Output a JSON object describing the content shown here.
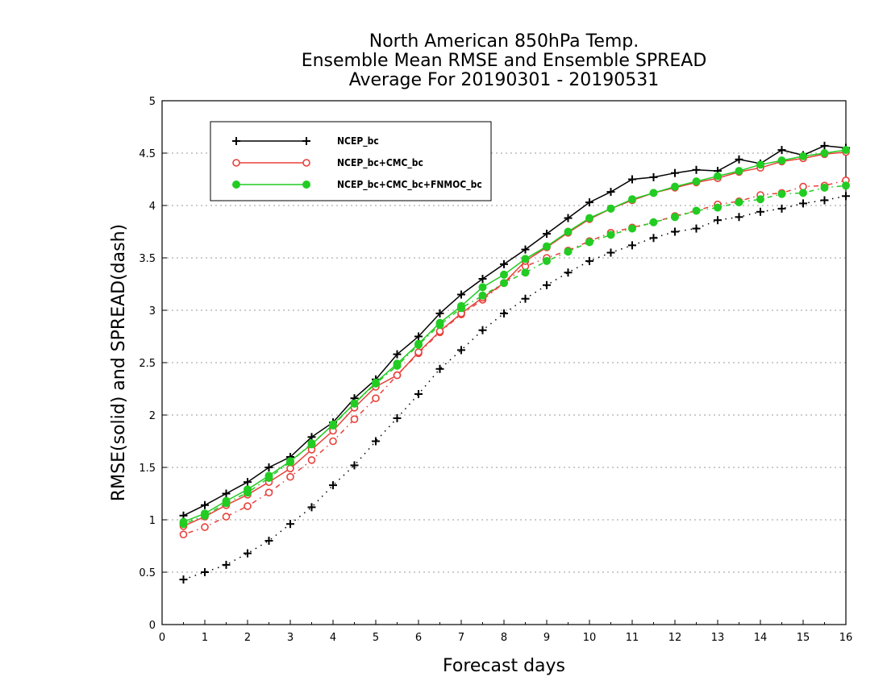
{
  "chart_data": {
    "type": "line",
    "title": [
      "North American 850hPa Temp.",
      "Ensemble Mean RMSE and Ensemble SPREAD",
      "Average For 20190301 - 20190531"
    ],
    "xlabel": "Forecast days",
    "ylabel": "RMSE(solid) and SPREAD(dash)",
    "xlim": [
      0,
      16
    ],
    "ylim": [
      0,
      5
    ],
    "xticks": [
      0,
      1,
      2,
      3,
      4,
      5,
      6,
      7,
      8,
      9,
      10,
      11,
      12,
      13,
      14,
      15,
      16
    ],
    "xtick_labels": [
      "0",
      "1",
      "2",
      "3",
      "4",
      "5",
      "6",
      "7",
      "8",
      "9",
      "10",
      "11",
      "12",
      "13",
      "14",
      "15",
      "16"
    ],
    "yticks": [
      0,
      0.5,
      1,
      1.5,
      2,
      2.5,
      3,
      3.5,
      4,
      4.5,
      5
    ],
    "ytick_labels": [
      "0",
      "0.5",
      "1",
      "1.5",
      "2",
      "2.5",
      "3",
      "3.5",
      "4",
      "4.5",
      "5"
    ],
    "grid": true,
    "legend_position": "top-left",
    "x": [
      0.5,
      1,
      1.5,
      2,
      2.5,
      3,
      3.5,
      4,
      4.5,
      5,
      5.5,
      6,
      6.5,
      7,
      7.5,
      8,
      8.5,
      9,
      9.5,
      10,
      10.5,
      11,
      11.5,
      12,
      12.5,
      13,
      13.5,
      14,
      14.5,
      15,
      15.5,
      16
    ],
    "series": [
      {
        "name": "NCEP_bc",
        "color": "#000000",
        "marker": "plus",
        "rmse": [
          1.04,
          1.14,
          1.25,
          1.36,
          1.5,
          1.6,
          1.79,
          1.93,
          2.16,
          2.34,
          2.58,
          2.75,
          2.97,
          3.15,
          3.3,
          3.44,
          3.58,
          3.73,
          3.88,
          4.03,
          4.13,
          4.25,
          4.27,
          4.31,
          4.34,
          4.33,
          4.44,
          4.4,
          4.53,
          4.48,
          4.57,
          4.55
        ],
        "spread": [
          0.43,
          0.5,
          0.57,
          0.68,
          0.8,
          0.96,
          1.12,
          1.33,
          1.52,
          1.75,
          1.97,
          2.2,
          2.44,
          2.62,
          2.81,
          2.97,
          3.11,
          3.24,
          3.36,
          3.47,
          3.55,
          3.62,
          3.69,
          3.75,
          3.78,
          3.86,
          3.89,
          3.94,
          3.97,
          4.02,
          4.05,
          4.09
        ]
      },
      {
        "name": "NCEP_bc+CMC_bc",
        "color": "#e8403a",
        "marker": "open-circle",
        "rmse": [
          0.94,
          1.03,
          1.14,
          1.24,
          1.36,
          1.49,
          1.67,
          1.85,
          2.07,
          2.27,
          2.38,
          2.6,
          2.8,
          2.97,
          3.12,
          3.26,
          3.47,
          3.6,
          3.74,
          3.87,
          3.97,
          4.05,
          4.12,
          4.17,
          4.22,
          4.26,
          4.32,
          4.36,
          4.42,
          4.45,
          4.49,
          4.51
        ],
        "spread": [
          0.86,
          0.93,
          1.03,
          1.13,
          1.26,
          1.41,
          1.57,
          1.75,
          1.96,
          2.16,
          2.38,
          2.59,
          2.79,
          2.96,
          3.1,
          3.26,
          3.42,
          3.5,
          3.57,
          3.66,
          3.74,
          3.79,
          3.84,
          3.9,
          3.95,
          4.01,
          4.04,
          4.1,
          4.12,
          4.18,
          4.19,
          4.24
        ]
      },
      {
        "name": "NCEP_bc+CMC_bc+FNMOC_bc",
        "color": "#22cc22",
        "marker": "filled-circle",
        "rmse": [
          0.98,
          1.06,
          1.18,
          1.29,
          1.42,
          1.56,
          1.72,
          1.91,
          2.11,
          2.31,
          2.49,
          2.68,
          2.88,
          3.04,
          3.22,
          3.34,
          3.49,
          3.61,
          3.75,
          3.88,
          3.97,
          4.06,
          4.12,
          4.18,
          4.23,
          4.28,
          4.33,
          4.39,
          4.43,
          4.47,
          4.5,
          4.53
        ],
        "spread": [
          0.96,
          1.04,
          1.16,
          1.26,
          1.4,
          1.55,
          1.73,
          1.9,
          2.11,
          2.3,
          2.47,
          2.67,
          2.86,
          3.02,
          3.14,
          3.26,
          3.36,
          3.47,
          3.56,
          3.65,
          3.72,
          3.78,
          3.84,
          3.89,
          3.95,
          3.98,
          4.03,
          4.06,
          4.11,
          4.12,
          4.17,
          4.19
        ]
      }
    ]
  }
}
